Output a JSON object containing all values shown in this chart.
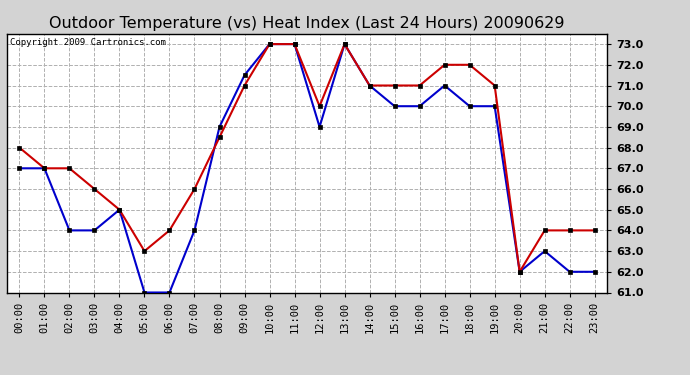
{
  "title": "Outdoor Temperature (vs) Heat Index (Last 24 Hours) 20090629",
  "copyright": "Copyright 2009 Cartronics.com",
  "x_labels": [
    "00:00",
    "01:00",
    "02:00",
    "03:00",
    "04:00",
    "05:00",
    "06:00",
    "07:00",
    "08:00",
    "09:00",
    "10:00",
    "11:00",
    "12:00",
    "13:00",
    "14:00",
    "15:00",
    "16:00",
    "17:00",
    "18:00",
    "19:00",
    "20:00",
    "21:00",
    "22:00",
    "23:00"
  ],
  "temp_blue": [
    67.0,
    67.0,
    64.0,
    64.0,
    65.0,
    61.0,
    61.0,
    64.0,
    69.0,
    71.5,
    73.0,
    73.0,
    69.0,
    73.0,
    71.0,
    70.0,
    70.0,
    71.0,
    70.0,
    70.0,
    62.0,
    63.0,
    62.0,
    62.0
  ],
  "heat_red": [
    68.0,
    67.0,
    67.0,
    66.0,
    65.0,
    63.0,
    64.0,
    66.0,
    68.5,
    71.0,
    73.0,
    73.0,
    70.0,
    73.0,
    71.0,
    71.0,
    71.0,
    72.0,
    72.0,
    71.0,
    62.0,
    64.0,
    64.0,
    64.0
  ],
  "ylim_min": 61.0,
  "ylim_max": 73.5,
  "yticks": [
    61.0,
    62.0,
    63.0,
    64.0,
    65.0,
    66.0,
    67.0,
    68.0,
    69.0,
    70.0,
    71.0,
    72.0,
    73.0
  ],
  "blue_color": "#0000cc",
  "red_color": "#cc0000",
  "outer_bg": "#d3d3d3",
  "plot_bg": "#ffffff",
  "grid_color": "#b0b0b0",
  "title_fontsize": 11.5,
  "copyright_fontsize": 6.5,
  "tick_fontsize": 7.5,
  "ytick_fontsize": 8.0
}
